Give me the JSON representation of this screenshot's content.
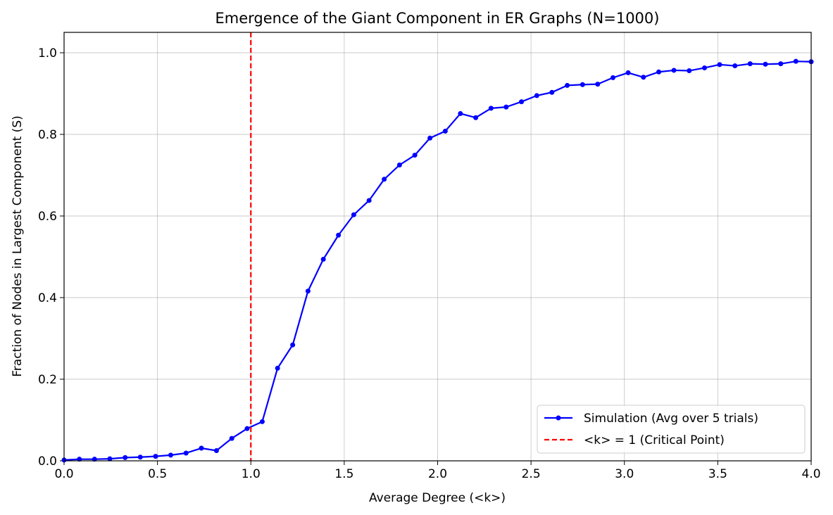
{
  "chart_data": {
    "type": "line",
    "title": "Emergence of the Giant Component in ER Graphs (N=1000)",
    "xlabel": "Average Degree (<k>)",
    "ylabel": "Fraction of Nodes in Largest Component (S)",
    "xlim": [
      0,
      4.0
    ],
    "ylim": [
      0,
      1.05
    ],
    "xticks": [
      0.0,
      0.5,
      1.0,
      1.5,
      2.0,
      2.5,
      3.0,
      3.5,
      4.0
    ],
    "xtick_labels": [
      "0.0",
      "0.5",
      "1.0",
      "1.5",
      "2.0",
      "2.5",
      "3.0",
      "3.5",
      "4.0"
    ],
    "yticks": [
      0.0,
      0.2,
      0.4,
      0.6,
      0.8,
      1.0
    ],
    "ytick_labels": [
      "0.0",
      "0.2",
      "0.4",
      "0.6",
      "0.8",
      "1.0"
    ],
    "grid": true,
    "legend_position": "lower-right",
    "series": [
      {
        "name": "Simulation (Avg over 5 trials)",
        "color": "#0000ff",
        "style": "solid",
        "marker": "circle",
        "x": [
          0.0,
          0.082,
          0.163,
          0.245,
          0.327,
          0.408,
          0.49,
          0.571,
          0.653,
          0.735,
          0.816,
          0.898,
          0.98,
          1.061,
          1.143,
          1.224,
          1.306,
          1.388,
          1.469,
          1.551,
          1.633,
          1.714,
          1.796,
          1.878,
          1.959,
          2.041,
          2.122,
          2.204,
          2.286,
          2.367,
          2.449,
          2.531,
          2.612,
          2.694,
          2.776,
          2.857,
          2.939,
          3.02,
          3.102,
          3.184,
          3.265,
          3.347,
          3.429,
          3.51,
          3.592,
          3.673,
          3.755,
          3.837,
          3.918,
          4.0
        ],
        "y": [
          0.002,
          0.004,
          0.004,
          0.005,
          0.008,
          0.009,
          0.011,
          0.014,
          0.019,
          0.031,
          0.025,
          0.055,
          0.079,
          0.096,
          0.227,
          0.284,
          0.416,
          0.494,
          0.553,
          0.603,
          0.638,
          0.69,
          0.725,
          0.749,
          0.791,
          0.808,
          0.851,
          0.841,
          0.864,
          0.867,
          0.88,
          0.895,
          0.903,
          0.92,
          0.922,
          0.923,
          0.939,
          0.951,
          0.94,
          0.953,
          0.957,
          0.956,
          0.963,
          0.971,
          0.968,
          0.973,
          0.972,
          0.973,
          0.979,
          0.978
        ]
      },
      {
        "name": "<k> = 1 (Critical Point)",
        "color": "#ff0000",
        "style": "dashed",
        "marker": "none",
        "vline_x": 1.0
      }
    ]
  }
}
